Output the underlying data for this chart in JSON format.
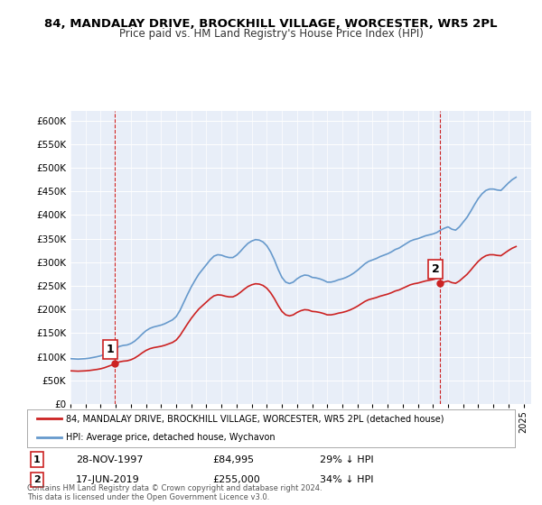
{
  "title": "84, MANDALAY DRIVE, BROCKHILL VILLAGE, WORCESTER, WR5 2PL",
  "subtitle": "Price paid vs. HM Land Registry's House Price Index (HPI)",
  "ylabel_ticks": [
    "£0",
    "£50K",
    "£100K",
    "£150K",
    "£200K",
    "£250K",
    "£300K",
    "£350K",
    "£400K",
    "£450K",
    "£500K",
    "£550K",
    "£600K"
  ],
  "ytick_values": [
    0,
    50000,
    100000,
    150000,
    200000,
    250000,
    300000,
    350000,
    400000,
    450000,
    500000,
    550000,
    600000
  ],
  "ylim": [
    0,
    620000
  ],
  "xlim_start": 1995.0,
  "xlim_end": 2025.5,
  "background_color": "#e8eef8",
  "plot_bg_color": "#dde6f5",
  "hpi_color": "#6699cc",
  "price_color": "#cc2222",
  "transaction1": {
    "year": 1997.91,
    "price": 84995,
    "label": "1",
    "date": "28-NOV-1997",
    "pct": "29% ↓ HPI"
  },
  "transaction2": {
    "year": 2019.46,
    "price": 255000,
    "label": "2",
    "date": "17-JUN-2019",
    "pct": "34% ↓ HPI"
  },
  "legend_line1": "84, MANDALAY DRIVE, BROCKHILL VILLAGE, WORCESTER, WR5 2PL (detached house)",
  "legend_line2": "HPI: Average price, detached house, Wychavon",
  "footer1": "Contains HM Land Registry data © Crown copyright and database right 2024.",
  "footer2": "This data is licensed under the Open Government Licence v3.0.",
  "hpi_data": {
    "years": [
      1995.0,
      1995.25,
      1995.5,
      1995.75,
      1996.0,
      1996.25,
      1996.5,
      1996.75,
      1997.0,
      1997.25,
      1997.5,
      1997.75,
      1998.0,
      1998.25,
      1998.5,
      1998.75,
      1999.0,
      1999.25,
      1999.5,
      1999.75,
      2000.0,
      2000.25,
      2000.5,
      2000.75,
      2001.0,
      2001.25,
      2001.5,
      2001.75,
      2002.0,
      2002.25,
      2002.5,
      2002.75,
      2003.0,
      2003.25,
      2003.5,
      2003.75,
      2004.0,
      2004.25,
      2004.5,
      2004.75,
      2005.0,
      2005.25,
      2005.5,
      2005.75,
      2006.0,
      2006.25,
      2006.5,
      2006.75,
      2007.0,
      2007.25,
      2007.5,
      2007.75,
      2008.0,
      2008.25,
      2008.5,
      2008.75,
      2009.0,
      2009.25,
      2009.5,
      2009.75,
      2010.0,
      2010.25,
      2010.5,
      2010.75,
      2011.0,
      2011.25,
      2011.5,
      2011.75,
      2012.0,
      2012.25,
      2012.5,
      2012.75,
      2013.0,
      2013.25,
      2013.5,
      2013.75,
      2014.0,
      2014.25,
      2014.5,
      2014.75,
      2015.0,
      2015.25,
      2015.5,
      2015.75,
      2016.0,
      2016.25,
      2016.5,
      2016.75,
      2017.0,
      2017.25,
      2017.5,
      2017.75,
      2018.0,
      2018.25,
      2018.5,
      2018.75,
      2019.0,
      2019.25,
      2019.5,
      2019.75,
      2020.0,
      2020.25,
      2020.5,
      2020.75,
      2021.0,
      2021.25,
      2021.5,
      2021.75,
      2022.0,
      2022.25,
      2022.5,
      2022.75,
      2023.0,
      2023.25,
      2023.5,
      2023.75,
      2024.0,
      2024.25,
      2024.5
    ],
    "values": [
      96000,
      95500,
      95000,
      95500,
      96000,
      97000,
      98500,
      100000,
      102000,
      105000,
      109000,
      113000,
      118000,
      122000,
      124000,
      125000,
      128000,
      133000,
      140000,
      148000,
      155000,
      160000,
      163000,
      165000,
      167000,
      170000,
      174000,
      178000,
      185000,
      198000,
      215000,
      232000,
      248000,
      262000,
      275000,
      285000,
      295000,
      305000,
      313000,
      316000,
      315000,
      312000,
      310000,
      310000,
      315000,
      323000,
      332000,
      340000,
      345000,
      348000,
      347000,
      343000,
      335000,
      322000,
      305000,
      285000,
      268000,
      258000,
      255000,
      258000,
      265000,
      270000,
      273000,
      272000,
      268000,
      267000,
      265000,
      262000,
      258000,
      258000,
      260000,
      263000,
      265000,
      268000,
      272000,
      277000,
      283000,
      290000,
      297000,
      302000,
      305000,
      308000,
      312000,
      315000,
      318000,
      322000,
      327000,
      330000,
      335000,
      340000,
      345000,
      348000,
      350000,
      353000,
      356000,
      358000,
      360000,
      363000,
      368000,
      372000,
      375000,
      370000,
      368000,
      375000,
      385000,
      395000,
      408000,
      422000,
      435000,
      445000,
      452000,
      455000,
      455000,
      453000,
      452000,
      460000,
      468000,
      475000,
      480000
    ]
  },
  "price_data": {
    "years": [
      1997.91,
      2019.46
    ],
    "values": [
      84995,
      255000
    ]
  }
}
